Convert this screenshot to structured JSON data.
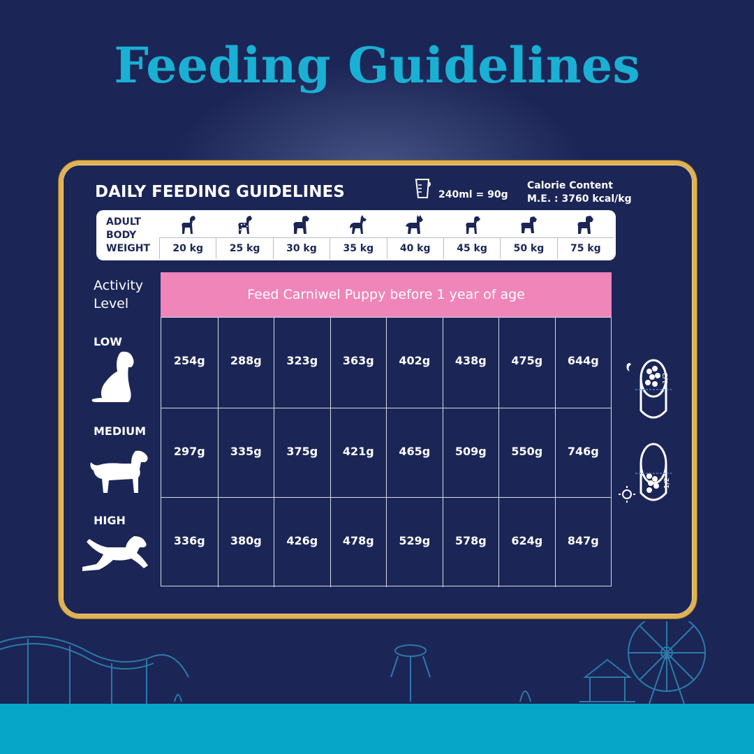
{
  "title": "Feeding Guidelines",
  "card": {
    "heading": "DAILY FEEDING GUIDELINES",
    "measure": "240ml = 90g",
    "calorie_line1": "Calorie Content",
    "calorie_line2": "M.E. : 3760 kcal/kg"
  },
  "weight_label": [
    "ADULT",
    "BODY",
    "WEIGHT"
  ],
  "weights": [
    "20 kg",
    "25 kg",
    "30 kg",
    "35 kg",
    "40 kg",
    "45 kg",
    "50 kg",
    "75 kg"
  ],
  "activity_label": [
    "Activity",
    "Level"
  ],
  "banner": "Feed Carniwel Puppy before 1 year of age",
  "levels": [
    {
      "name": "LOW",
      "values": [
        "254g",
        "288g",
        "323g",
        "363g",
        "402g",
        "438g",
        "475g",
        "644g"
      ]
    },
    {
      "name": "MEDIUM",
      "values": [
        "297g",
        "335g",
        "375g",
        "421g",
        "465g",
        "509g",
        "550g",
        "746g"
      ]
    },
    {
      "name": "HIGH",
      "values": [
        "336g",
        "380g",
        "426g",
        "478g",
        "529g",
        "578g",
        "624g",
        "847g"
      ]
    }
  ],
  "bowl_fraction": "1/2",
  "colors": {
    "background": "#1b2656",
    "title": "#1ab0d4",
    "frame": "#e0b256",
    "banner": "#ef85b8",
    "band": "#06a6c9"
  },
  "icons": [
    "measuring-cup-icon",
    "dog-icon",
    "moon-icon",
    "sun-icon",
    "food-bowl-icon"
  ]
}
